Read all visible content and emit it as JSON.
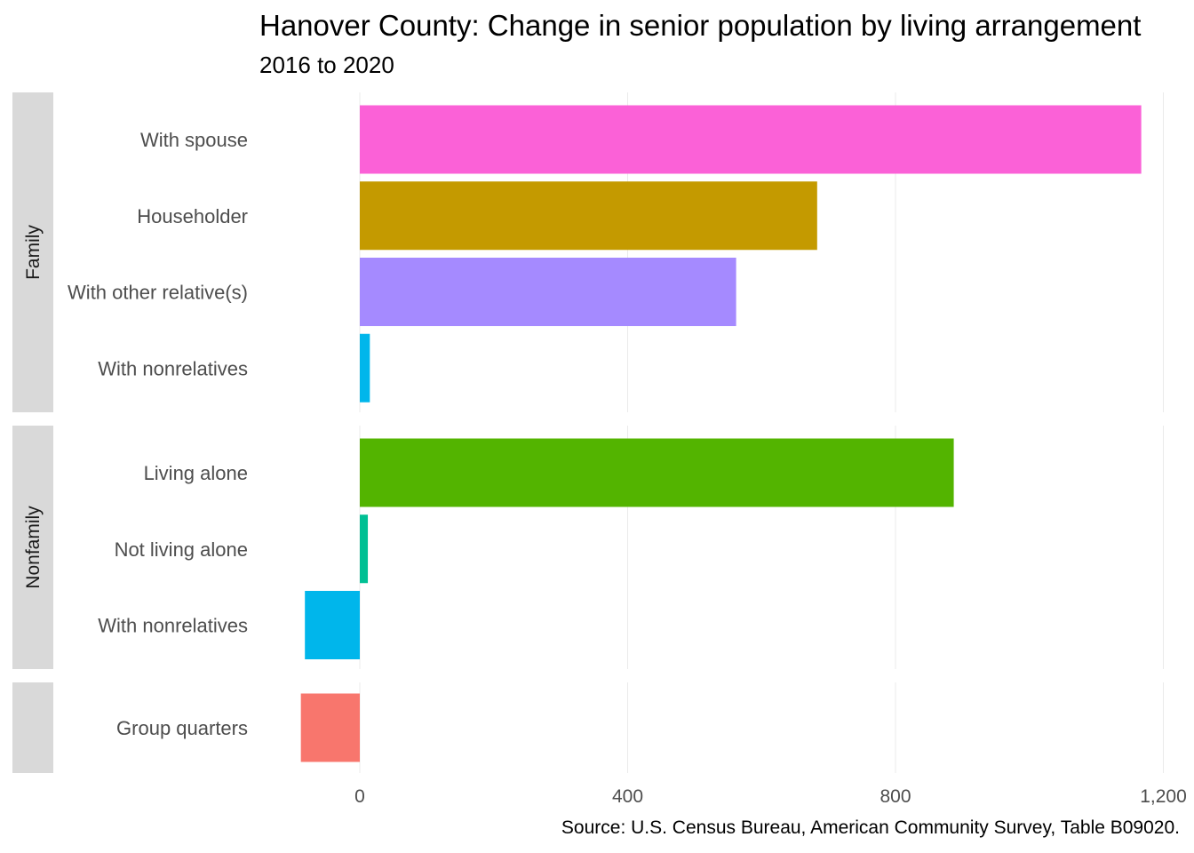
{
  "chart_data": {
    "type": "bar",
    "orientation": "horizontal",
    "title": "Hanover County: Change in senior population by living arrangement",
    "subtitle": "2016 to 2020",
    "caption": "Source: U.S. Census Bureau, American Community Survey, Table B09020.",
    "xlabel": "",
    "ylabel": "",
    "xlim": [
      -90,
      1200
    ],
    "x_ticks": [
      0,
      400,
      800,
      1200
    ],
    "x_tick_labels": [
      "0",
      "400",
      "800",
      "1,200"
    ],
    "grid": true,
    "legend": "none",
    "facets": [
      {
        "label": "Family",
        "bars": [
          {
            "category": "With spouse",
            "value": 1167,
            "color": "#FB61D7"
          },
          {
            "category": "Householder",
            "value": 683,
            "color": "#C49A00"
          },
          {
            "category": "With other relative(s)",
            "value": 562,
            "color": "#A58AFF"
          },
          {
            "category": "With nonrelatives",
            "value": 15,
            "color": "#00B6EB"
          }
        ]
      },
      {
        "label": "Nonfamily",
        "bars": [
          {
            "category": "Living alone",
            "value": 887,
            "color": "#53B400"
          },
          {
            "category": "Not living alone",
            "value": 12,
            "color": "#00C094"
          },
          {
            "category": "With nonrelatives",
            "value": -82,
            "color": "#00B6EB"
          }
        ]
      },
      {
        "label": "",
        "bars": [
          {
            "category": "Group quarters",
            "value": -88,
            "color": "#F8766D"
          }
        ]
      }
    ]
  },
  "colors": {
    "strip_fill": "#D9D9D9",
    "grid": "#EBEBEB",
    "tick_text": "#4D4D4D",
    "strip_text": "#1A1A1A"
  }
}
